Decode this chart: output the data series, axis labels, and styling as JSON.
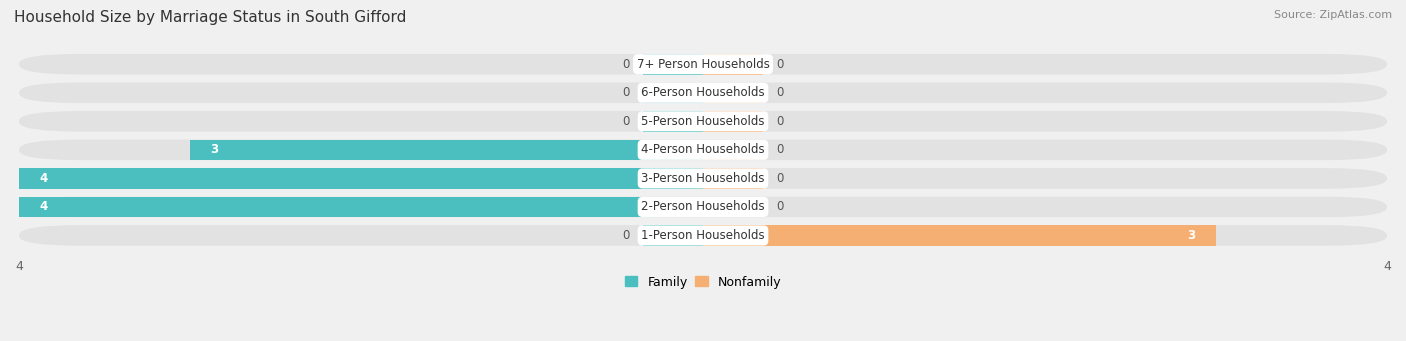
{
  "title": "Household Size by Marriage Status in South Gifford",
  "source": "Source: ZipAtlas.com",
  "categories": [
    "7+ Person Households",
    "6-Person Households",
    "5-Person Households",
    "4-Person Households",
    "3-Person Households",
    "2-Person Households",
    "1-Person Households"
  ],
  "family_values": [
    0,
    0,
    0,
    3,
    4,
    4,
    0
  ],
  "nonfamily_values": [
    0,
    0,
    0,
    0,
    0,
    0,
    3
  ],
  "family_color": "#4BBFBF",
  "nonfamily_color": "#F5AF72",
  "xlim_left": -4,
  "xlim_right": 4,
  "background_color": "#f0f0f0",
  "row_bg_color": "#e2e2e2",
  "title_fontsize": 11,
  "source_fontsize": 8,
  "label_fontsize": 8.5,
  "value_fontsize": 8.5,
  "legend_fontsize": 9,
  "tick_fontsize": 9,
  "zero_stub": 0.35
}
